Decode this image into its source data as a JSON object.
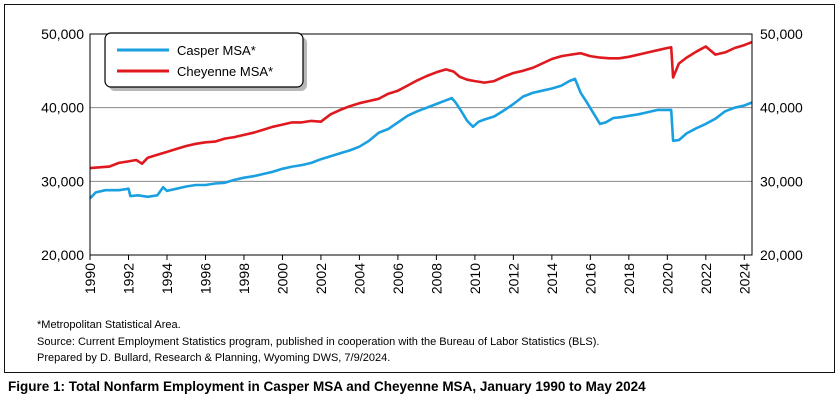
{
  "notes": {
    "metro": "*Metropolitan Statistical Area.",
    "source": "Source: Current Employment Statistics program, published in cooperation with the Bureau of Labor Statistics (BLS).",
    "prepared": "Prepared by D. Bullard, Research & Planning, Wyoming DWS, 7/9/2024."
  },
  "caption": "Figure 1: Total Nonfarm Employment in Casper MSA and Cheyenne MSA, January 1990 to May 2024",
  "chart_data": {
    "type": "line",
    "title": "",
    "xlabel": "",
    "ylabel": "",
    "xlim": [
      1990,
      2024.4
    ],
    "ylim": [
      20000,
      50000
    ],
    "x_ticks": [
      "1990",
      "1992",
      "1994",
      "1996",
      "1998",
      "2000",
      "2002",
      "2004",
      "2006",
      "2008",
      "2010",
      "2012",
      "2014",
      "2016",
      "2018",
      "2020",
      "2022",
      "2024"
    ],
    "y_ticks": [
      "20,000",
      "30,000",
      "40,000",
      "50,000"
    ],
    "y_tick_values": [
      20000,
      30000,
      40000,
      50000
    ],
    "grid": true,
    "legend_position": "top-left",
    "series": [
      {
        "name": "Casper MSA*",
        "color": "#1aa0e0",
        "points": [
          [
            1990.0,
            27700
          ],
          [
            1990.3,
            28500
          ],
          [
            1990.8,
            28800
          ],
          [
            1991.5,
            28800
          ],
          [
            1992.0,
            29000
          ],
          [
            1992.1,
            28000
          ],
          [
            1992.5,
            28100
          ],
          [
            1993.0,
            27900
          ],
          [
            1993.5,
            28100
          ],
          [
            1993.8,
            29200
          ],
          [
            1994.0,
            28700
          ],
          [
            1994.5,
            29000
          ],
          [
            1995.0,
            29300
          ],
          [
            1995.5,
            29500
          ],
          [
            1996.0,
            29500
          ],
          [
            1996.5,
            29700
          ],
          [
            1997.0,
            29800
          ],
          [
            1997.5,
            30200
          ],
          [
            1998.0,
            30500
          ],
          [
            1998.5,
            30700
          ],
          [
            1999.0,
            31000
          ],
          [
            1999.5,
            31300
          ],
          [
            2000.0,
            31700
          ],
          [
            2000.5,
            32000
          ],
          [
            2001.0,
            32200
          ],
          [
            2001.5,
            32500
          ],
          [
            2002.0,
            33000
          ],
          [
            2002.5,
            33400
          ],
          [
            2003.0,
            33800
          ],
          [
            2003.5,
            34200
          ],
          [
            2004.0,
            34700
          ],
          [
            2004.5,
            35500
          ],
          [
            2005.0,
            36600
          ],
          [
            2005.5,
            37100
          ],
          [
            2006.0,
            38000
          ],
          [
            2006.5,
            38900
          ],
          [
            2007.0,
            39500
          ],
          [
            2007.5,
            40000
          ],
          [
            2008.0,
            40500
          ],
          [
            2008.5,
            41000
          ],
          [
            2008.8,
            41300
          ],
          [
            2009.0,
            40700
          ],
          [
            2009.3,
            39500
          ],
          [
            2009.6,
            38200
          ],
          [
            2009.9,
            37400
          ],
          [
            2010.2,
            38100
          ],
          [
            2010.5,
            38400
          ],
          [
            2011.0,
            38800
          ],
          [
            2011.5,
            39600
          ],
          [
            2012.0,
            40500
          ],
          [
            2012.5,
            41500
          ],
          [
            2013.0,
            42000
          ],
          [
            2013.5,
            42300
          ],
          [
            2014.0,
            42600
          ],
          [
            2014.5,
            43000
          ],
          [
            2014.9,
            43600
          ],
          [
            2015.2,
            43900
          ],
          [
            2015.5,
            42000
          ],
          [
            2015.8,
            40800
          ],
          [
            2016.1,
            39500
          ],
          [
            2016.5,
            37800
          ],
          [
            2016.8,
            38000
          ],
          [
            2017.2,
            38600
          ],
          [
            2017.6,
            38700
          ],
          [
            2018.0,
            38900
          ],
          [
            2018.5,
            39100
          ],
          [
            2019.0,
            39400
          ],
          [
            2019.5,
            39700
          ],
          [
            2020.0,
            39700
          ],
          [
            2020.2,
            39700
          ],
          [
            2020.3,
            35500
          ],
          [
            2020.6,
            35600
          ],
          [
            2021.0,
            36500
          ],
          [
            2021.5,
            37200
          ],
          [
            2022.0,
            37800
          ],
          [
            2022.5,
            38500
          ],
          [
            2023.0,
            39500
          ],
          [
            2023.5,
            40000
          ],
          [
            2024.0,
            40300
          ],
          [
            2024.4,
            40700
          ]
        ]
      },
      {
        "name": "Cheyenne MSA*",
        "color": "#e0191e",
        "points": [
          [
            1990.0,
            31800
          ],
          [
            1990.5,
            31900
          ],
          [
            1991.0,
            32000
          ],
          [
            1991.5,
            32500
          ],
          [
            1992.0,
            32700
          ],
          [
            1992.4,
            32900
          ],
          [
            1992.7,
            32400
          ],
          [
            1993.0,
            33200
          ],
          [
            1993.5,
            33600
          ],
          [
            1994.0,
            34000
          ],
          [
            1994.5,
            34400
          ],
          [
            1995.0,
            34800
          ],
          [
            1995.5,
            35100
          ],
          [
            1996.0,
            35300
          ],
          [
            1996.5,
            35400
          ],
          [
            1997.0,
            35800
          ],
          [
            1997.5,
            36000
          ],
          [
            1998.0,
            36300
          ],
          [
            1998.5,
            36600
          ],
          [
            1999.0,
            37000
          ],
          [
            1999.5,
            37400
          ],
          [
            2000.0,
            37700
          ],
          [
            2000.5,
            38000
          ],
          [
            2001.0,
            38000
          ],
          [
            2001.5,
            38200
          ],
          [
            2002.0,
            38100
          ],
          [
            2002.5,
            39100
          ],
          [
            2003.0,
            39700
          ],
          [
            2003.5,
            40200
          ],
          [
            2004.0,
            40600
          ],
          [
            2004.5,
            40900
          ],
          [
            2005.0,
            41200
          ],
          [
            2005.5,
            41900
          ],
          [
            2006.0,
            42300
          ],
          [
            2006.5,
            43000
          ],
          [
            2007.0,
            43700
          ],
          [
            2007.5,
            44300
          ],
          [
            2008.0,
            44800
          ],
          [
            2008.5,
            45200
          ],
          [
            2008.9,
            44900
          ],
          [
            2009.2,
            44200
          ],
          [
            2009.6,
            43800
          ],
          [
            2010.0,
            43600
          ],
          [
            2010.5,
            43400
          ],
          [
            2011.0,
            43600
          ],
          [
            2011.5,
            44200
          ],
          [
            2012.0,
            44700
          ],
          [
            2012.5,
            45000
          ],
          [
            2013.0,
            45400
          ],
          [
            2013.5,
            46000
          ],
          [
            2014.0,
            46600
          ],
          [
            2014.5,
            47000
          ],
          [
            2015.0,
            47200
          ],
          [
            2015.5,
            47400
          ],
          [
            2016.0,
            47000
          ],
          [
            2016.5,
            46800
          ],
          [
            2017.0,
            46700
          ],
          [
            2017.5,
            46700
          ],
          [
            2018.0,
            46900
          ],
          [
            2018.5,
            47200
          ],
          [
            2019.0,
            47500
          ],
          [
            2019.5,
            47800
          ],
          [
            2020.0,
            48100
          ],
          [
            2020.2,
            48200
          ],
          [
            2020.3,
            44100
          ],
          [
            2020.6,
            46000
          ],
          [
            2021.0,
            46800
          ],
          [
            2021.5,
            47600
          ],
          [
            2022.0,
            48300
          ],
          [
            2022.5,
            47200
          ],
          [
            2023.0,
            47500
          ],
          [
            2023.5,
            48100
          ],
          [
            2024.0,
            48500
          ],
          [
            2024.4,
            48900
          ]
        ]
      }
    ]
  }
}
